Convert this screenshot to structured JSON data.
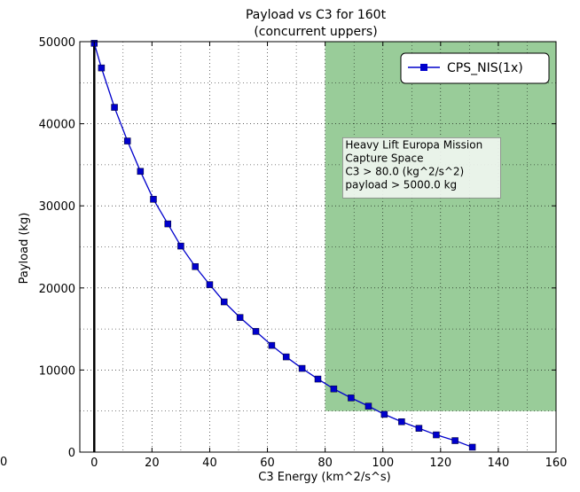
{
  "chart_data": {
    "type": "line",
    "title": "Payload vs C3 for 160t",
    "subtitle": "(concurrent uppers)",
    "xlabel": "C3 Energy (km^2/s^s)",
    "ylabel": "Payload (kg)",
    "xlim": [
      -5,
      160
    ],
    "ylim": [
      0,
      50000
    ],
    "grid": true,
    "legend_position": "top-right",
    "x_ticks": [
      "0",
      "20",
      "40",
      "60",
      "80",
      "100",
      "120",
      "140",
      "160"
    ],
    "y_ticks": [
      "0",
      "10000",
      "20000",
      "30000",
      "40000",
      "50000"
    ],
    "stray_label": "0",
    "series": [
      {
        "name": "CPS_NIS(1x)",
        "color": "#0000cc",
        "marker": "square",
        "x": [
          0,
          2.5,
          7,
          11.5,
          16,
          20.5,
          25.5,
          30,
          35,
          40,
          45,
          50.5,
          56,
          61.5,
          66.5,
          72,
          77.5,
          83,
          89,
          95,
          100.5,
          106.5,
          112.5,
          118.5,
          125,
          131
        ],
        "y": [
          49800,
          46800,
          42000,
          37900,
          34200,
          30800,
          27800,
          25100,
          22600,
          20400,
          18300,
          16400,
          14700,
          13000,
          11600,
          10200,
          8900,
          7700,
          6600,
          5600,
          4600,
          3700,
          2900,
          2100,
          1400,
          600
        ]
      }
    ],
    "region": {
      "x_min": 80,
      "x_max": 160,
      "y_min": 5000,
      "y_max": 50000,
      "color": "#99cc99"
    },
    "vline": {
      "x": 0,
      "color": "#000000"
    },
    "annotation": {
      "lines": [
        "Heavy Lift Europa Mission",
        "Capture Space",
        "C3 > 80.0 (kg^2/s^2)",
        "payload > 5000.0 kg"
      ],
      "x": 87,
      "y": 37000
    }
  }
}
